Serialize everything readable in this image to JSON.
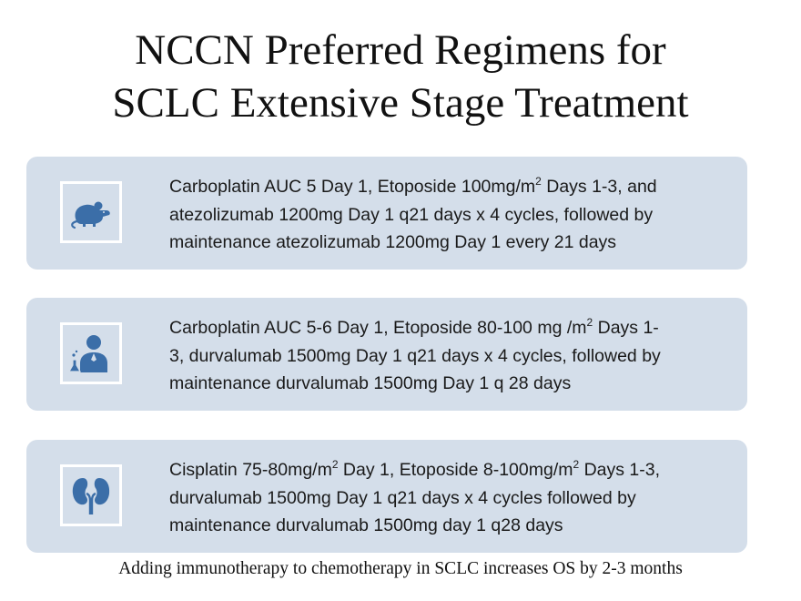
{
  "slide": {
    "title_lines": [
      "NCCN Preferred Regimens for",
      "SCLC Extensive Stage Treatment"
    ],
    "footer": "Adding immunotherapy to chemotherapy in SCLC increases OS by 2-3 months"
  },
  "regimens": [
    {
      "icon": "mouse-icon",
      "lines": [
        {
          "before": "Carboplatin AUC 5 Day 1, Etoposide 100mg/m",
          "sup": "2",
          "after": " Days 1-3, and"
        },
        {
          "before": "atezolizumab 1200mg Day 1 q21 days x 4 cycles, followed by"
        },
        {
          "before": "maintenance atezolizumab 1200mg Day 1 every 21 days"
        }
      ]
    },
    {
      "icon": "scientist-icon",
      "lines": [
        {
          "before": "Carboplatin AUC 5-6 Day 1, Etoposide 80-100 mg /m",
          "sup": "2",
          "after": " Days 1-"
        },
        {
          "before": "3, durvalumab 1500mg Day 1 q21 days x 4 cycles, followed by"
        },
        {
          "before": "maintenance durvalumab 1500mg Day 1 q 28 days"
        }
      ]
    },
    {
      "icon": "kidneys-icon",
      "lines": [
        {
          "before": "Cisplatin 75-80mg/m",
          "sup": "2",
          "after": " Day 1, Etoposide 8-100mg/m"
        },
        {
          "before": "durvalumab 1500mg Day 1 q21 days x 4 cycles followed by"
        },
        {
          "before": "maintenance durvalumab 1500mg day 1 q28 days"
        }
      ]
    }
  ],
  "regimen3_line1_tail": {
    "sup": "2",
    "after": " Days 1-3,"
  },
  "colors": {
    "card_background": "#d4deea",
    "icon_blue": "#3b6ea8",
    "text": "#1a1a1a"
  }
}
